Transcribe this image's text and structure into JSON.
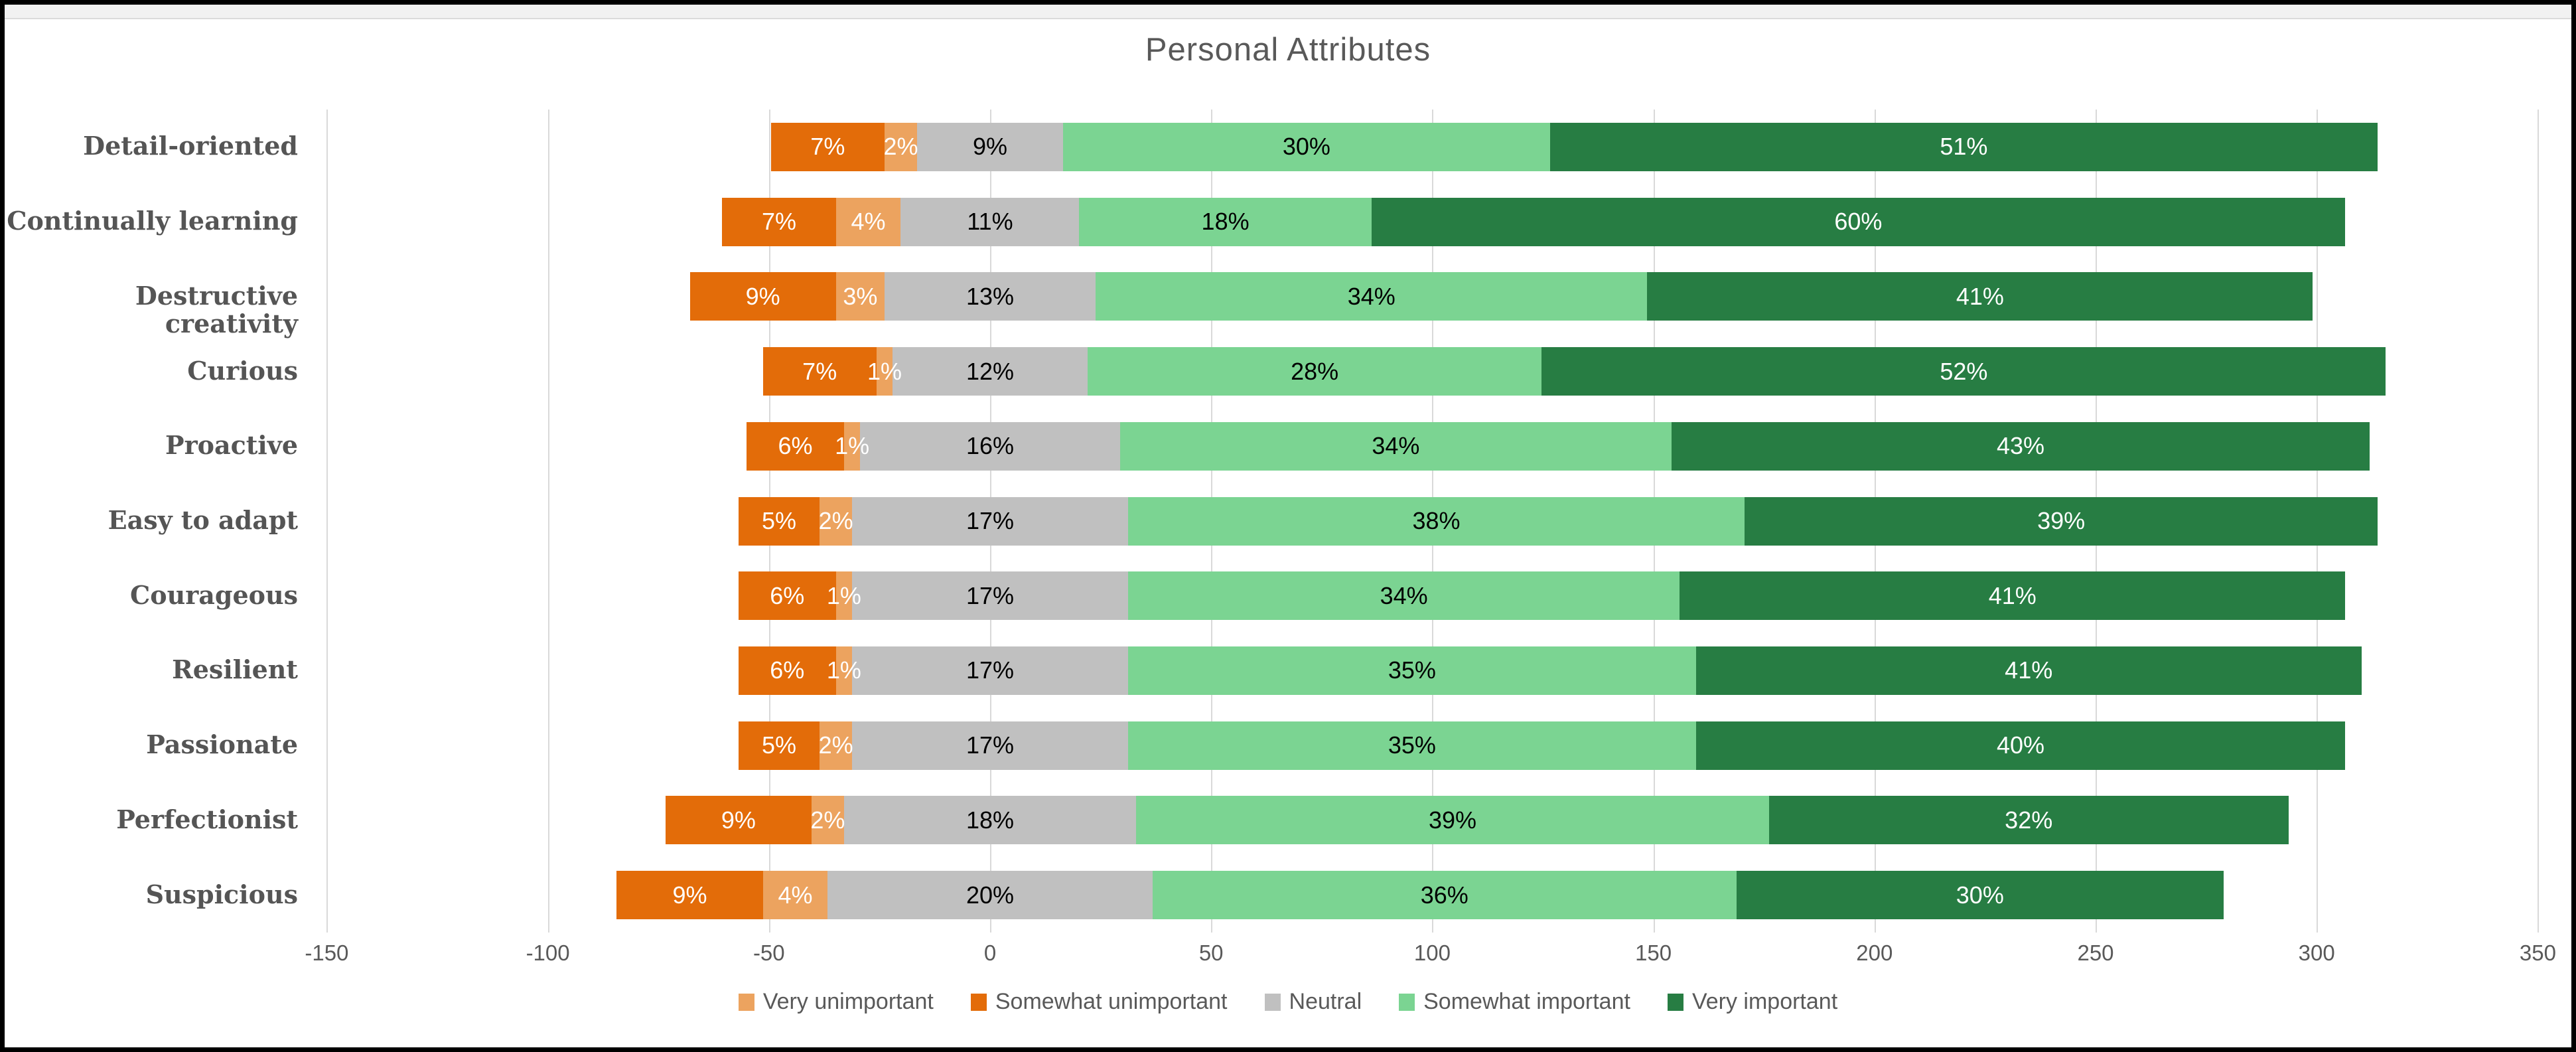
{
  "title": "Personal Attributes",
  "legend": [
    {
      "label": "Very unimportant",
      "color": "#ECA35F",
      "value_text_color": "#ffffff"
    },
    {
      "label": "Somewhat unimportant",
      "color": "#E36C09",
      "value_text_color": "#ffffff"
    },
    {
      "label": "Neutral",
      "color": "#C0C0C0",
      "value_text_color": "#000000"
    },
    {
      "label": "Somewhat important",
      "color": "#7BD492",
      "value_text_color": "#000000"
    },
    {
      "label": "Very important",
      "color": "#277D43",
      "value_text_color": "#ffffff"
    }
  ],
  "axis": {
    "ticks": [
      -150,
      -100,
      -50,
      0,
      50,
      100,
      150,
      200,
      250,
      300,
      350
    ]
  },
  "colors": {
    "title_text": "#595959",
    "axis_text": "#595959",
    "category_text": "#555555",
    "gridline": "#D9D9D9"
  },
  "chart_data": {
    "type": "bar",
    "subtype": "diverging-stacked-horizontal",
    "title": "Personal Attributes",
    "categories": [
      "Detail-oriented",
      "Continually learning",
      "Destructive creativity",
      "Curious",
      "Proactive",
      "Easy to adapt",
      "Courageous",
      "Resilient",
      "Passionate",
      "Perfectionist",
      "Suspicious"
    ],
    "series": [
      {
        "name": "Very unimportant",
        "values": [
          2,
          4,
          3,
          1,
          1,
          2,
          1,
          1,
          2,
          2,
          4
        ]
      },
      {
        "name": "Somewhat unimportant",
        "values": [
          7,
          7,
          9,
          7,
          6,
          5,
          6,
          6,
          5,
          9,
          9
        ]
      },
      {
        "name": "Neutral",
        "values": [
          9,
          11,
          13,
          12,
          16,
          17,
          17,
          17,
          17,
          18,
          20
        ]
      },
      {
        "name": "Somewhat important",
        "values": [
          30,
          18,
          34,
          28,
          34,
          38,
          34,
          35,
          35,
          39,
          36
        ]
      },
      {
        "name": "Very important",
        "values": [
          51,
          60,
          41,
          52,
          43,
          39,
          41,
          41,
          40,
          32,
          30
        ]
      }
    ],
    "value_suffix": "%",
    "xlabel": "",
    "ylabel": "",
    "xlim": [
      -150,
      350
    ],
    "layout_hints": {
      "grid": "vertical",
      "legend_position": "bottom",
      "stack_order_left_to_right": [
        "Somewhat unimportant",
        "Very unimportant",
        "Neutral",
        "Somewhat important",
        "Very important"
      ],
      "neutral_straddles_zero": true,
      "axis_units_per_percent": 3.67
    }
  }
}
